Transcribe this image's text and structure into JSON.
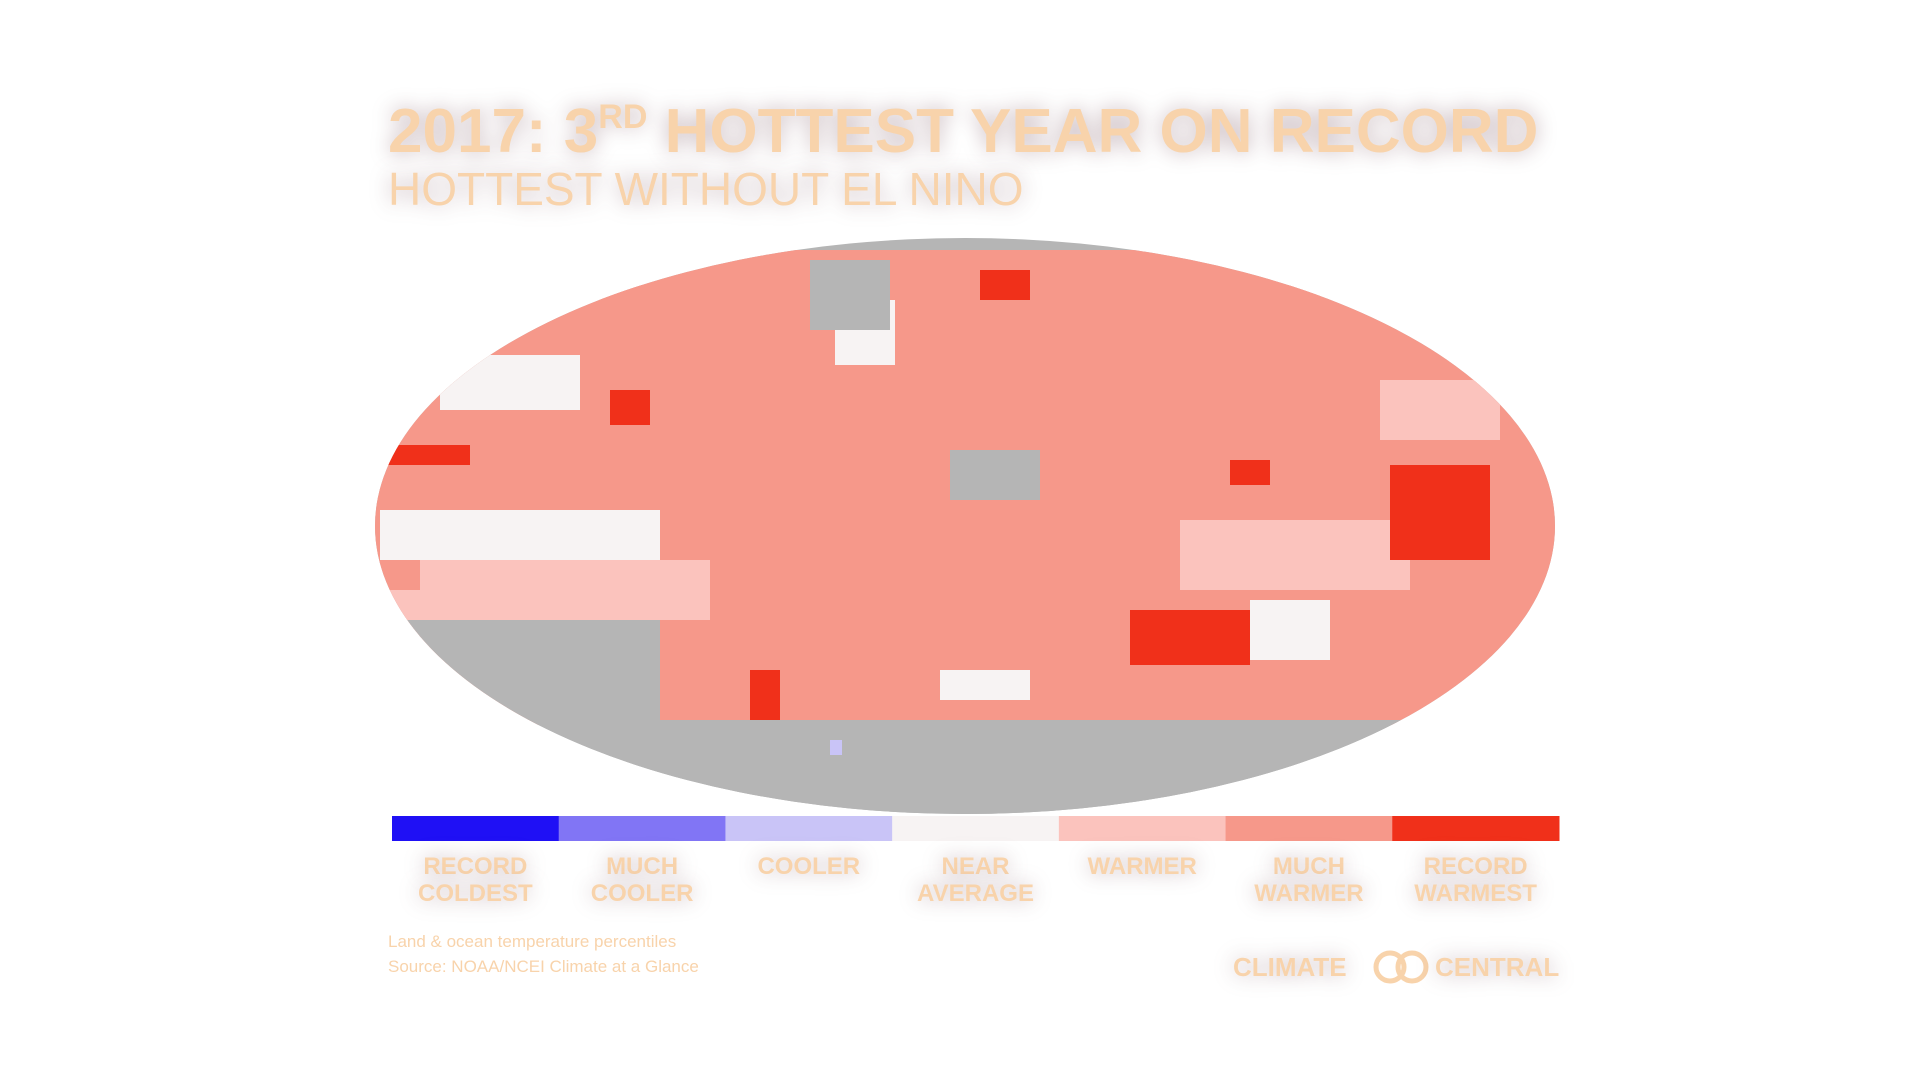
{
  "header": {
    "title_main": "2017: 3",
    "title_sup": "RD",
    "title_rest": " HOTTEST YEAR ON RECORD",
    "subtitle": "HOTTEST WITHOUT EL NINO"
  },
  "legend": {
    "items": [
      {
        "color": "#1f10f5",
        "label": [
          "RECORD",
          "COLDEST"
        ]
      },
      {
        "color": "#8175f5",
        "label": [
          "MUCH",
          "COOLER"
        ]
      },
      {
        "color": "#c9c4f7",
        "label": [
          "COOLER"
        ]
      },
      {
        "color": "#f7f3f3",
        "label": [
          "NEAR",
          "AVERAGE"
        ]
      },
      {
        "color": "#fbc3bd",
        "label": [
          "WARMER"
        ]
      },
      {
        "color": "#f6988a",
        "label": [
          "MUCH",
          "WARMER"
        ]
      },
      {
        "color": "#f0301a",
        "label": [
          "RECORD",
          "WARMEST"
        ]
      }
    ]
  },
  "footer": {
    "note": "Land & ocean temperature percentiles",
    "source": "Source: NOAA/NCEI Climate at a Glance",
    "logo_left": "CLIMATE",
    "logo_right": "CENTRAL"
  }
}
